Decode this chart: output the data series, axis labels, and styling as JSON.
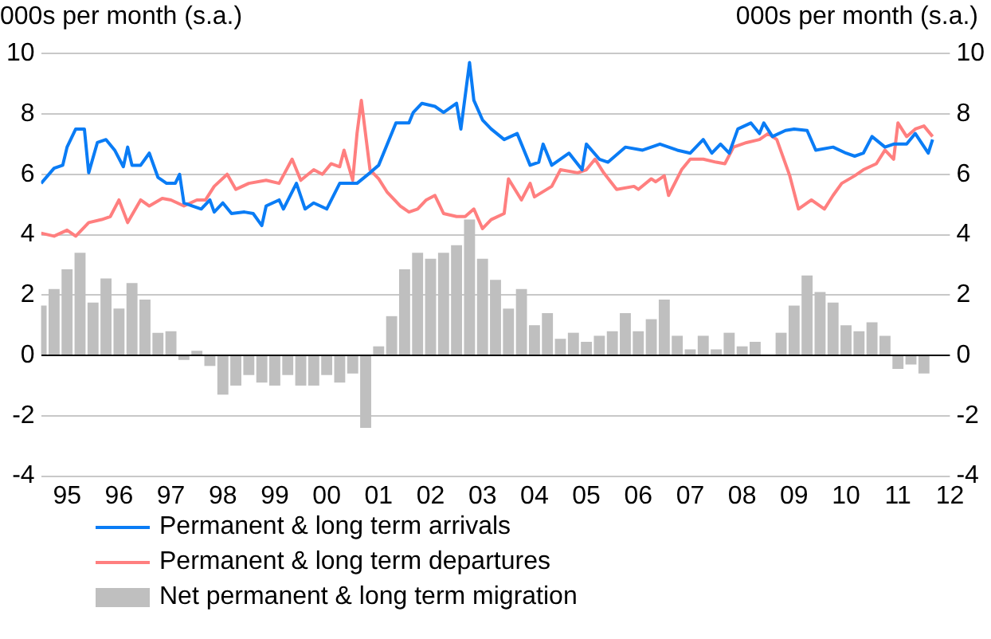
{
  "chart_data": {
    "type": "line",
    "ylabel": "000s per month (s.a.)",
    "y2label": "000s per month (s.a.)",
    "xlim": [
      "1995-01",
      "2012-07"
    ],
    "xticks": [
      {
        "value": "1995-07",
        "label": "95"
      },
      {
        "value": "1996-07",
        "label": "96"
      },
      {
        "value": "1997-07",
        "label": "97"
      },
      {
        "value": "1998-07",
        "label": "98"
      },
      {
        "value": "1999-07",
        "label": "99"
      },
      {
        "value": "2000-07",
        "label": "00"
      },
      {
        "value": "2001-07",
        "label": "01"
      },
      {
        "value": "2002-07",
        "label": "02"
      },
      {
        "value": "2003-07",
        "label": "03"
      },
      {
        "value": "2004-07",
        "label": "04"
      },
      {
        "value": "2005-07",
        "label": "05"
      },
      {
        "value": "2006-07",
        "label": "06"
      },
      {
        "value": "2007-07",
        "label": "07"
      },
      {
        "value": "2008-07",
        "label": "08"
      },
      {
        "value": "2009-07",
        "label": "09"
      },
      {
        "value": "2010-07",
        "label": "10"
      },
      {
        "value": "2011-07",
        "label": "11"
      },
      {
        "value": "2012-07",
        "label": "12"
      }
    ],
    "ylim": [
      -4,
      10
    ],
    "yticks": [
      -4,
      -2,
      0,
      2,
      4,
      6,
      8,
      10
    ],
    "y2lim": [
      -4,
      10
    ],
    "y2ticks": [
      -4,
      -2,
      0,
      2,
      4,
      6,
      8,
      10
    ],
    "grid": "y",
    "legend": "bottom",
    "series": [
      {
        "name": "Permanent & long term arrivals",
        "color": "#0a7cf5",
        "x": [
          "1995-01",
          "1995-04",
          "1995-06",
          "1995-07",
          "1995-09",
          "1995-11",
          "1995-12",
          "1996-02",
          "1996-04",
          "1996-06",
          "1996-08",
          "1996-09",
          "1996-10",
          "1996-12",
          "1997-02",
          "1997-04",
          "1997-06",
          "1997-08",
          "1997-09",
          "1997-10",
          "1997-12",
          "1998-02",
          "1998-04",
          "1998-05",
          "1998-07",
          "1998-09",
          "1998-12",
          "1999-02",
          "1999-04",
          "1999-05",
          "1999-08",
          "1999-09",
          "1999-12",
          "2000-02",
          "2000-04",
          "2000-07",
          "2000-10",
          "2001-02",
          "2001-05",
          "2001-07",
          "2001-11",
          "2002-02",
          "2002-03",
          "2002-05",
          "2002-08",
          "2002-10",
          "2003-01",
          "2003-02",
          "2003-04",
          "2003-05",
          "2003-07",
          "2003-09",
          "2003-12",
          "2004-03",
          "2004-06",
          "2004-08",
          "2004-09",
          "2004-11",
          "2005-03",
          "2005-06",
          "2005-07",
          "2005-10",
          "2005-12",
          "2006-04",
          "2006-08",
          "2006-12",
          "2007-04",
          "2007-07",
          "2007-10",
          "2007-12",
          "2008-02",
          "2008-04",
          "2008-06",
          "2008-09",
          "2008-11",
          "2008-12",
          "2009-02",
          "2009-05",
          "2009-07",
          "2009-10",
          "2009-12",
          "2010-04",
          "2010-07",
          "2010-09",
          "2010-11",
          "2011-01",
          "2011-04",
          "2011-06",
          "2011-09",
          "2011-11",
          "2012-02",
          "2012-03"
        ],
        "values": [
          5.7,
          6.2,
          6.3,
          6.9,
          7.5,
          7.5,
          6.05,
          7.05,
          7.15,
          6.8,
          6.25,
          6.9,
          6.3,
          6.3,
          6.7,
          5.9,
          5.7,
          5.7,
          6.0,
          5.05,
          4.95,
          4.85,
          5.15,
          4.75,
          5.05,
          4.7,
          4.75,
          4.7,
          4.3,
          4.95,
          5.15,
          4.85,
          5.7,
          4.85,
          5.05,
          4.85,
          5.7,
          5.7,
          6.05,
          6.3,
          7.7,
          7.7,
          8.05,
          8.35,
          8.25,
          8.05,
          8.35,
          7.5,
          9.7,
          8.45,
          7.8,
          7.5,
          7.15,
          7.35,
          6.3,
          6.4,
          7.0,
          6.3,
          6.7,
          6.15,
          7.0,
          6.5,
          6.4,
          6.9,
          6.8,
          7.0,
          6.8,
          6.7,
          7.15,
          6.7,
          7.0,
          6.7,
          7.5,
          7.7,
          7.35,
          7.7,
          7.25,
          7.45,
          7.5,
          7.45,
          6.8,
          6.9,
          6.7,
          6.6,
          6.7,
          7.25,
          6.9,
          7.0,
          7.0,
          7.35,
          6.7,
          7.15
        ]
      },
      {
        "name": "Permanent & long term departures",
        "color": "#ff7f7f",
        "x": [
          "1995-01",
          "1995-04",
          "1995-07",
          "1995-09",
          "1995-12",
          "1996-03",
          "1996-05",
          "1996-07",
          "1996-09",
          "1996-12",
          "1997-02",
          "1997-05",
          "1997-07",
          "1997-10",
          "1998-01",
          "1998-03",
          "1998-05",
          "1998-08",
          "1998-10",
          "1999-01",
          "1999-05",
          "1999-08",
          "1999-11",
          "2000-01",
          "2000-04",
          "2000-06",
          "2000-08",
          "2000-10",
          "2000-11",
          "2001-01",
          "2001-02",
          "2001-03",
          "2001-05",
          "2001-07",
          "2001-09",
          "2001-12",
          "2002-02",
          "2002-04",
          "2002-06",
          "2002-08",
          "2002-10",
          "2003-01",
          "2003-03",
          "2003-05",
          "2003-07",
          "2003-09",
          "2003-12",
          "2004-01",
          "2004-04",
          "2004-06",
          "2004-07",
          "2004-11",
          "2005-01",
          "2005-05",
          "2005-07",
          "2005-09",
          "2005-11",
          "2006-02",
          "2006-06",
          "2006-07",
          "2006-10",
          "2006-11",
          "2007-01",
          "2007-02",
          "2007-05",
          "2007-07",
          "2007-10",
          "2008-01",
          "2008-03",
          "2008-05",
          "2008-08",
          "2008-11",
          "2009-01",
          "2009-03",
          "2009-06",
          "2009-08",
          "2009-11",
          "2010-02",
          "2010-04",
          "2010-06",
          "2010-09",
          "2010-11",
          "2011-02",
          "2011-04",
          "2011-06",
          "2011-07",
          "2011-09",
          "2011-11",
          "2012-01",
          "2012-03"
        ],
        "values": [
          4.05,
          3.95,
          4.15,
          3.95,
          4.4,
          4.5,
          4.6,
          5.15,
          4.4,
          5.15,
          4.95,
          5.2,
          5.15,
          4.95,
          5.15,
          5.15,
          5.6,
          6.0,
          5.5,
          5.7,
          5.8,
          5.7,
          6.5,
          5.8,
          6.15,
          6.0,
          6.35,
          6.25,
          6.8,
          5.8,
          7.35,
          8.45,
          6.15,
          5.85,
          5.4,
          4.95,
          4.75,
          4.85,
          5.15,
          5.3,
          4.7,
          4.6,
          4.6,
          4.85,
          4.2,
          4.5,
          4.7,
          5.85,
          5.15,
          5.7,
          5.25,
          5.6,
          6.15,
          6.05,
          6.15,
          6.5,
          6.05,
          5.5,
          5.6,
          5.5,
          5.85,
          5.75,
          5.95,
          5.3,
          6.15,
          6.5,
          6.5,
          6.4,
          6.35,
          6.9,
          7.05,
          7.15,
          7.35,
          7.15,
          5.95,
          4.85,
          5.15,
          4.85,
          5.3,
          5.7,
          5.95,
          6.15,
          6.35,
          6.8,
          6.5,
          7.7,
          7.25,
          7.5,
          7.6,
          7.25
        ]
      },
      {
        "name": "Net permanent & long term migration",
        "type": "bar",
        "color": "#bfbfbf",
        "x": [
          "1995-01",
          "1995-04",
          "1995-07",
          "1995-10",
          "1996-01",
          "1996-04",
          "1996-07",
          "1996-10",
          "1997-01",
          "1997-04",
          "1997-07",
          "1997-10",
          "1998-01",
          "1998-04",
          "1998-07",
          "1998-10",
          "1999-01",
          "1999-04",
          "1999-07",
          "1999-10",
          "2000-01",
          "2000-04",
          "2000-07",
          "2000-10",
          "2001-01",
          "2001-04",
          "2001-07",
          "2001-10",
          "2002-01",
          "2002-04",
          "2002-07",
          "2002-10",
          "2003-01",
          "2003-04",
          "2003-07",
          "2003-10",
          "2004-01",
          "2004-04",
          "2004-07",
          "2004-10",
          "2005-01",
          "2005-04",
          "2005-07",
          "2005-10",
          "2006-01",
          "2006-04",
          "2006-07",
          "2006-10",
          "2007-01",
          "2007-04",
          "2007-07",
          "2007-10",
          "2008-01",
          "2008-04",
          "2008-07",
          "2008-10",
          "2009-01",
          "2009-04",
          "2009-07",
          "2009-10",
          "2010-01",
          "2010-04",
          "2010-07",
          "2010-10",
          "2011-01",
          "2011-04",
          "2011-07",
          "2011-10",
          "2012-01"
        ],
        "values": [
          1.65,
          2.2,
          2.85,
          3.4,
          1.75,
          2.55,
          1.55,
          2.4,
          1.85,
          0.75,
          0.8,
          -0.15,
          0.15,
          -0.35,
          -1.3,
          -1.0,
          -0.65,
          -0.9,
          -1.0,
          -0.65,
          -1.0,
          -1.0,
          -0.65,
          -0.9,
          -0.6,
          -2.4,
          0.3,
          1.3,
          2.85,
          3.4,
          3.2,
          3.4,
          3.65,
          4.5,
          3.2,
          2.5,
          1.55,
          2.2,
          1.0,
          1.4,
          0.55,
          0.75,
          0.45,
          0.65,
          0.8,
          1.4,
          0.8,
          1.2,
          1.85,
          0.65,
          0.2,
          0.65,
          0.2,
          0.75,
          0.3,
          0.45,
          0,
          0.75,
          1.65,
          2.65,
          2.1,
          1.75,
          1.0,
          0.8,
          1.1,
          0.65,
          -0.45,
          -0.3,
          -0.6
        ]
      }
    ]
  }
}
